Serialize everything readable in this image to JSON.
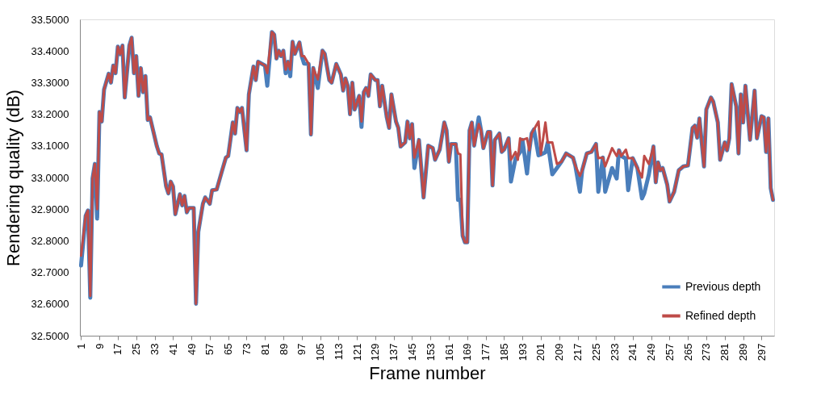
{
  "chart_data": {
    "type": "line",
    "xlabel": "Frame number",
    "ylabel": "Rendering quality (dB)",
    "x": [
      1,
      3,
      4,
      5,
      6,
      7,
      8,
      9,
      10,
      11,
      13,
      14,
      15,
      16,
      17,
      18,
      19,
      20,
      22,
      23,
      24,
      25,
      26,
      27,
      28,
      29,
      30,
      31,
      34,
      35,
      36,
      38,
      39,
      40,
      41,
      42,
      44,
      45,
      46,
      47,
      48,
      50,
      51,
      52,
      54,
      55,
      57,
      58,
      60,
      62,
      64,
      65,
      67,
      68,
      69,
      70,
      71,
      73,
      74,
      76,
      77,
      78,
      81,
      82,
      84,
      85,
      86,
      87,
      88,
      89,
      90,
      91,
      92,
      93,
      94,
      96,
      97,
      98,
      100,
      101,
      102,
      104,
      106,
      107,
      109,
      110,
      112,
      114,
      115,
      116,
      117,
      118,
      119,
      120,
      122,
      123,
      124,
      125,
      126,
      127,
      129,
      130,
      131,
      132,
      134,
      135,
      136,
      138,
      139,
      140,
      142,
      143,
      144,
      145,
      146,
      148,
      150,
      152,
      154,
      155,
      157,
      159,
      160,
      161,
      162,
      164,
      165,
      166,
      167,
      168,
      169,
      170,
      171,
      172,
      174,
      175,
      176,
      178,
      179,
      180,
      181,
      183,
      184,
      185,
      187,
      188,
      190,
      191,
      192,
      193,
      195,
      196,
      197,
      198,
      200,
      201,
      203,
      204,
      206,
      208,
      210,
      212,
      215,
      216,
      218,
      219,
      221,
      223,
      225,
      226,
      228,
      229,
      232,
      234,
      235,
      236,
      238,
      239,
      241,
      243,
      245,
      246,
      248,
      250,
      251,
      252,
      253,
      254,
      256,
      257,
      259,
      261,
      263,
      265,
      267,
      268,
      269,
      270,
      272,
      273,
      275,
      276,
      278,
      279,
      281,
      282,
      283,
      284,
      286,
      287,
      288,
      289,
      290,
      292,
      294,
      295,
      297,
      298,
      299,
      300,
      301,
      302
    ],
    "series": [
      {
        "name": "Previous depth",
        "color": "#4a7ebb",
        "values": [
          32.722,
          32.879,
          32.896,
          32.62,
          32.997,
          33.043,
          32.87,
          33.207,
          33.177,
          33.278,
          33.328,
          33.3,
          33.354,
          33.33,
          33.414,
          33.39,
          33.417,
          33.253,
          33.417,
          33.442,
          33.33,
          33.384,
          33.258,
          33.346,
          33.27,
          33.321,
          33.182,
          33.19,
          33.098,
          33.076,
          33.073,
          32.972,
          32.95,
          32.987,
          32.972,
          32.884,
          32.947,
          32.912,
          32.942,
          32.89,
          32.904,
          32.904,
          32.601,
          32.828,
          32.917,
          32.937,
          32.917,
          32.96,
          32.962,
          33.013,
          33.063,
          33.068,
          33.174,
          33.139,
          33.22,
          33.207,
          33.22,
          33.086,
          33.263,
          33.351,
          33.308,
          33.366,
          33.354,
          33.29,
          33.46,
          33.452,
          33.376,
          33.401,
          33.384,
          33.401,
          33.33,
          33.366,
          33.32,
          33.429,
          33.391,
          33.427,
          33.384,
          33.36,
          33.359,
          33.136,
          33.346,
          33.283,
          33.401,
          33.391,
          33.308,
          33.3,
          33.359,
          33.326,
          33.275,
          33.313,
          33.29,
          33.2,
          33.3,
          33.215,
          33.258,
          33.16,
          33.27,
          33.283,
          33.258,
          33.326,
          33.308,
          33.308,
          33.225,
          33.29,
          33.19,
          33.157,
          33.263,
          33.177,
          33.157,
          33.098,
          33.111,
          33.177,
          33.124,
          33.169,
          33.03,
          33.119,
          32.937,
          33.101,
          33.093,
          33.056,
          33.088,
          33.174,
          33.149,
          33.05,
          33.106,
          33.106,
          32.929,
          32.93,
          32.816,
          32.795,
          32.795,
          33.149,
          33.174,
          33.101,
          33.19,
          33.149,
          33.093,
          33.144,
          33.144,
          32.975,
          33.119,
          33.139,
          33.081,
          33.088,
          33.124,
          32.987,
          33.06,
          33.07,
          33.08,
          33.119,
          33.013,
          33.086,
          33.139,
          33.152,
          33.07,
          33.073,
          33.08,
          33.111,
          33.01,
          33.03,
          33.05,
          33.076,
          33.063,
          33.038,
          32.955,
          33.023,
          33.076,
          33.081,
          33.106,
          32.955,
          33.063,
          32.955,
          33.03,
          32.997,
          33.086,
          33.068,
          33.06,
          32.96,
          33.061,
          33.03,
          32.934,
          32.95,
          33.01,
          33.098,
          32.985,
          33.048,
          33.023,
          33.03,
          32.977,
          32.924,
          32.955,
          33.023,
          33.035,
          33.038,
          33.157,
          33.164,
          33.126,
          33.187,
          33.035,
          33.215,
          33.253,
          33.24,
          33.174,
          33.056,
          33.111,
          33.086,
          33.124,
          33.295,
          33.225,
          33.076,
          33.263,
          33.174,
          33.29,
          33.119,
          33.275,
          33.124,
          33.194,
          33.19,
          33.081,
          33.187,
          32.967,
          32.929
        ]
      },
      {
        "name": "Refined depth",
        "color": "#be4b48",
        "values": [
          32.753,
          32.879,
          32.896,
          32.626,
          32.997,
          33.043,
          32.9,
          33.207,
          33.177,
          33.278,
          33.328,
          33.3,
          33.354,
          33.33,
          33.414,
          33.39,
          33.417,
          33.253,
          33.417,
          33.442,
          33.33,
          33.384,
          33.258,
          33.346,
          33.27,
          33.321,
          33.182,
          33.19,
          33.098,
          33.076,
          33.073,
          32.972,
          32.95,
          32.987,
          32.972,
          32.884,
          32.947,
          32.912,
          32.942,
          32.89,
          32.904,
          32.904,
          32.601,
          32.828,
          32.917,
          32.937,
          32.917,
          32.96,
          32.962,
          33.013,
          33.063,
          33.068,
          33.174,
          33.139,
          33.22,
          33.207,
          33.22,
          33.086,
          33.263,
          33.351,
          33.308,
          33.366,
          33.354,
          33.33,
          33.46,
          33.452,
          33.376,
          33.401,
          33.384,
          33.401,
          33.341,
          33.366,
          33.341,
          33.429,
          33.391,
          33.427,
          33.384,
          33.384,
          33.359,
          33.136,
          33.346,
          33.31,
          33.401,
          33.391,
          33.308,
          33.3,
          33.359,
          33.326,
          33.275,
          33.313,
          33.29,
          33.2,
          33.3,
          33.215,
          33.258,
          33.177,
          33.27,
          33.283,
          33.258,
          33.326,
          33.308,
          33.308,
          33.225,
          33.29,
          33.19,
          33.157,
          33.263,
          33.177,
          33.157,
          33.098,
          33.111,
          33.177,
          33.124,
          33.169,
          33.063,
          33.119,
          32.937,
          33.101,
          33.093,
          33.056,
          33.088,
          33.174,
          33.149,
          33.05,
          33.106,
          33.106,
          33.076,
          33.073,
          32.816,
          32.795,
          32.795,
          33.149,
          33.174,
          33.101,
          33.169,
          33.149,
          33.093,
          33.144,
          33.144,
          32.975,
          33.119,
          33.139,
          33.081,
          33.088,
          33.124,
          33.056,
          33.081,
          33.056,
          33.124,
          33.119,
          33.124,
          33.086,
          33.139,
          33.152,
          33.177,
          33.073,
          33.174,
          33.111,
          33.111,
          33.043,
          33.05,
          33.076,
          33.063,
          33.038,
          33.005,
          33.023,
          33.076,
          33.081,
          33.106,
          33.061,
          33.063,
          33.035,
          33.093,
          33.068,
          33.086,
          33.068,
          33.088,
          33.061,
          33.061,
          33.03,
          33.0,
          33.068,
          33.043,
          33.098,
          32.985,
          33.048,
          33.023,
          33.03,
          32.977,
          32.924,
          32.955,
          33.023,
          33.035,
          33.038,
          33.157,
          33.164,
          33.126,
          33.187,
          33.035,
          33.215,
          33.253,
          33.24,
          33.174,
          33.056,
          33.111,
          33.086,
          33.124,
          33.295,
          33.225,
          33.076,
          33.263,
          33.174,
          33.29,
          33.119,
          33.275,
          33.124,
          33.194,
          33.19,
          33.081,
          33.187,
          32.967,
          32.929
        ]
      }
    ],
    "xlim": [
      0.5,
      302.5
    ],
    "xticks": [
      1,
      9,
      17,
      25,
      33,
      41,
      49,
      57,
      65,
      73,
      81,
      89,
      97,
      105,
      113,
      121,
      129,
      137,
      145,
      153,
      161,
      169,
      177,
      185,
      193,
      201,
      209,
      217,
      225,
      233,
      241,
      249,
      257,
      265,
      273,
      281,
      289,
      297
    ],
    "ylim": [
      32.5,
      33.5
    ],
    "yticks": [
      {
        "value": 32.5,
        "label": "32.5000"
      },
      {
        "value": 32.6,
        "label": "32.6000"
      },
      {
        "value": 32.7,
        "label": "32.7000"
      },
      {
        "value": 32.8,
        "label": "32.8000"
      },
      {
        "value": 32.9,
        "label": "32.9000"
      },
      {
        "value": 33.0,
        "label": "33.0000"
      },
      {
        "value": 33.1,
        "label": "33.1000"
      },
      {
        "value": 33.2,
        "label": "33.2000"
      },
      {
        "value": 33.3,
        "label": "33.3000"
      },
      {
        "value": 33.4,
        "label": "33.4000"
      },
      {
        "value": 33.5,
        "label": "33.5000"
      }
    ],
    "grid": false,
    "legend": "bottom right"
  }
}
